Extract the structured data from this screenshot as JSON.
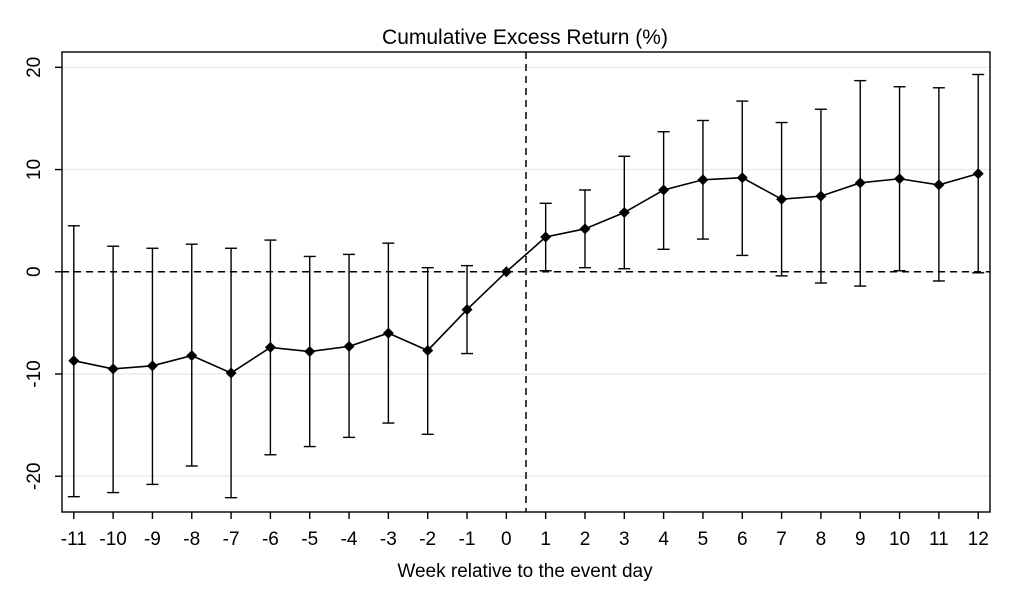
{
  "chart_data": {
    "type": "line",
    "title": "Cumulative Excess Return (%)",
    "xlabel": "Week relative to the event day",
    "ylabel": "",
    "x": [
      -11,
      -10,
      -9,
      -8,
      -7,
      -6,
      -5,
      -4,
      -3,
      -2,
      -1,
      0,
      1,
      2,
      3,
      4,
      5,
      6,
      7,
      8,
      9,
      10,
      11,
      12
    ],
    "series": [
      {
        "values": [
          -8.7,
          -9.5,
          -9.2,
          -8.2,
          -9.9,
          -7.4,
          -7.8,
          -7.3,
          -6.0,
          -7.7,
          -3.7,
          0.0,
          3.4,
          4.2,
          5.8,
          8.0,
          9.0,
          9.2,
          7.1,
          7.4,
          8.7,
          9.1,
          8.5,
          9.6
        ],
        "ci_upper": [
          4.5,
          2.5,
          2.3,
          2.7,
          2.3,
          3.1,
          1.5,
          1.7,
          2.8,
          0.4,
          0.6,
          0.0,
          6.7,
          8.0,
          11.3,
          13.7,
          14.8,
          16.7,
          14.6,
          15.9,
          18.7,
          18.1,
          18.0,
          19.3
        ],
        "ci_lower": [
          -22.0,
          -21.6,
          -20.8,
          -19.0,
          -22.1,
          -17.9,
          -17.1,
          -16.2,
          -14.8,
          -15.9,
          -8.0,
          0.0,
          0.1,
          0.4,
          0.3,
          2.2,
          3.2,
          1.6,
          -0.4,
          -1.1,
          -1.4,
          0.1,
          -0.9,
          -0.1
        ]
      }
    ],
    "xlim": [
      -11.3,
      12.3
    ],
    "ylim": [
      -23.5,
      21.5
    ],
    "yticks": [
      -20,
      -10,
      0,
      10,
      20
    ],
    "yticklabels": [
      "-20",
      "-10",
      "0",
      "10",
      "20"
    ],
    "xticks": [
      -11,
      -10,
      -9,
      -8,
      -7,
      -6,
      -5,
      -4,
      -3,
      -2,
      -1,
      0,
      1,
      2,
      3,
      4,
      5,
      6,
      7,
      8,
      9,
      10,
      11,
      12
    ],
    "xticklabels": [
      "-11",
      "-10",
      "-9",
      "-8",
      "-7",
      "-6",
      "-5",
      "-4",
      "-3",
      "-2",
      "-1",
      "0",
      "1",
      "2",
      "3",
      "4",
      "5",
      "6",
      "7",
      "8",
      "9",
      "10",
      "11",
      "12"
    ],
    "reference_lines": {
      "horizontal_y": 0,
      "vertical_x": 0.5,
      "style": "dashed"
    },
    "grid": "horizontal",
    "colors": {
      "line": "#000000",
      "grid": "#e6ecef",
      "axis": "#000000"
    }
  }
}
